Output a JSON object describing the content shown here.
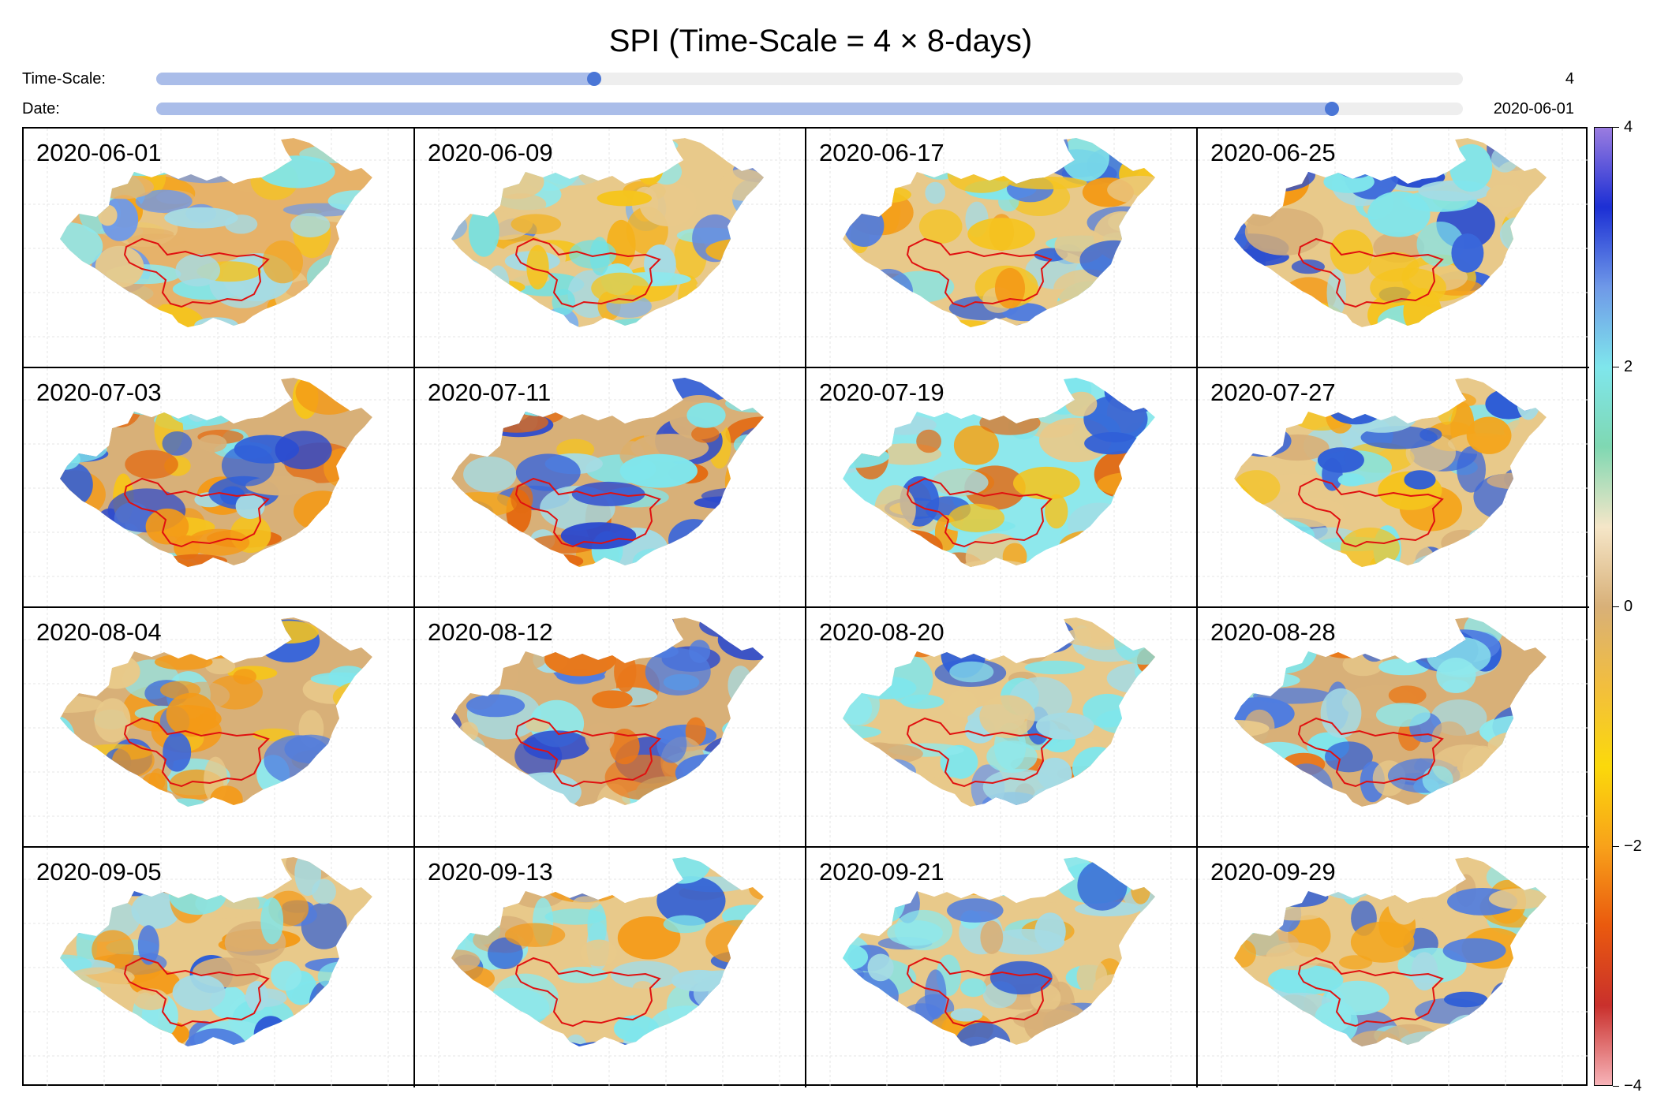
{
  "title": "SPI (Time-Scale = 4 × 8-days)",
  "controls": {
    "timescale": {
      "label": "Time-Scale:",
      "value": "4",
      "fraction": 0.335
    },
    "date": {
      "label": "Date:",
      "value": "2020-06-01",
      "fraction": 0.9
    }
  },
  "panels": [
    {
      "date": "2020-06-01",
      "palette": [
        "#f5c41e",
        "#e6b26a",
        "#8ee8ec",
        "#a5dbe4",
        "#e8c98a",
        "#f4a51b",
        "#7fe6ec",
        "#6f99e8"
      ]
    },
    {
      "date": "2020-06-09",
      "palette": [
        "#f4b11b",
        "#e8c98a",
        "#8ee8ec",
        "#7fb2ec",
        "#a5dbe4",
        "#f5c41e",
        "#6fe2e6",
        "#5e83e0"
      ]
    },
    {
      "date": "2020-06-17",
      "palette": [
        "#f49a17",
        "#e8c98a",
        "#8ee8ec",
        "#4f7ce0",
        "#f5c41e",
        "#a5dbe4",
        "#2f5ed6",
        "#7fe6ec"
      ]
    },
    {
      "date": "2020-06-25",
      "palette": [
        "#f49a17",
        "#e8c98a",
        "#7fe6ec",
        "#3a66da",
        "#f5c41e",
        "#a5dbe4",
        "#2b4fd0",
        "#d8b078"
      ]
    },
    {
      "date": "2020-07-03",
      "palette": [
        "#f49a17",
        "#d8b078",
        "#7fe6ec",
        "#3060d8",
        "#f5c41e",
        "#2a49cf",
        "#e36a12",
        "#a5dbe4"
      ]
    },
    {
      "date": "2020-07-11",
      "palette": [
        "#f4a51b",
        "#d8b078",
        "#7fe6ec",
        "#3a66da",
        "#e36a12",
        "#f5c41e",
        "#a5dbe4",
        "#2a49cf"
      ]
    },
    {
      "date": "2020-07-19",
      "palette": [
        "#f4a51b",
        "#8ee8ec",
        "#7fe6ec",
        "#3060d8",
        "#e8c98a",
        "#e36a12",
        "#a5dbe4",
        "#f5c41e"
      ]
    },
    {
      "date": "2020-07-27",
      "palette": [
        "#f4a51b",
        "#e8c98a",
        "#7fe6ec",
        "#3a66da",
        "#a5dbe4",
        "#f5c41e",
        "#2f5ed6",
        "#d8b078"
      ]
    },
    {
      "date": "2020-08-04",
      "palette": [
        "#f49a17",
        "#d8b078",
        "#8ee8ec",
        "#3a66da",
        "#e8c98a",
        "#7fe6ec",
        "#4f7ce0",
        "#f5c41e"
      ]
    },
    {
      "date": "2020-08-12",
      "palette": [
        "#e9781a",
        "#d8b078",
        "#8ee8ec",
        "#4f7ce0",
        "#a5dbe4",
        "#7fe6ec",
        "#2a49cf",
        "#e8c98a"
      ]
    },
    {
      "date": "2020-08-20",
      "palette": [
        "#e9781a",
        "#e8c98a",
        "#8ee8ec",
        "#6f99e8",
        "#a5dbe4",
        "#3060d8",
        "#7fe6ec",
        "#d8b078"
      ]
    },
    {
      "date": "2020-08-28",
      "palette": [
        "#e9781a",
        "#d8b078",
        "#8ee8ec",
        "#4f7ce0",
        "#a5dbe4",
        "#3060d8",
        "#e8c98a",
        "#7fe6ec"
      ]
    },
    {
      "date": "2020-09-05",
      "palette": [
        "#f49a17",
        "#e8c98a",
        "#8ee8ec",
        "#4f7ce0",
        "#a5dbe4",
        "#2f5ed6",
        "#d8b078",
        "#7fe6ec"
      ]
    },
    {
      "date": "2020-09-13",
      "palette": [
        "#f49a17",
        "#e8c98a",
        "#8ee8ec",
        "#5079e0",
        "#a5dbe4",
        "#2f5ed6",
        "#7fe6ec",
        "#d8b078"
      ]
    },
    {
      "date": "2020-09-21",
      "palette": [
        "#f4a51b",
        "#e8c98a",
        "#8ee8ec",
        "#4f7ce0",
        "#a5dbe4",
        "#2f5ed6",
        "#d8b078",
        "#7fe6ec"
      ]
    },
    {
      "date": "2020-09-29",
      "palette": [
        "#f4a51b",
        "#e8c98a",
        "#8ee8ec",
        "#4f7ce0",
        "#a5dbe4",
        "#2f5ed6",
        "#d8b078",
        "#7fe6ec"
      ]
    }
  ],
  "colorbar": {
    "range": [
      -4,
      4
    ],
    "ticks": [
      {
        "value": 4,
        "label": "4"
      },
      {
        "value": 2,
        "label": "2"
      },
      {
        "value": 0,
        "label": "0"
      },
      {
        "value": -2,
        "label": "−2"
      },
      {
        "value": -4,
        "label": "−4"
      }
    ],
    "stops": [
      "#f7b3b8",
      "#c9302c",
      "#ea5a0e",
      "#f8a21a",
      "#fbd90b",
      "#f2be3e",
      "#d8b078",
      "#f5e6c8",
      "#7fd8b2",
      "#7fe6ec",
      "#6f99e8",
      "#1c2fd4",
      "#9a7ce0"
    ]
  },
  "boundary_color": "#e01010",
  "colors": {
    "slider_fill": "#aabde9",
    "slider_knob": "#4a76d6",
    "slider_track": "#eeeeee"
  }
}
